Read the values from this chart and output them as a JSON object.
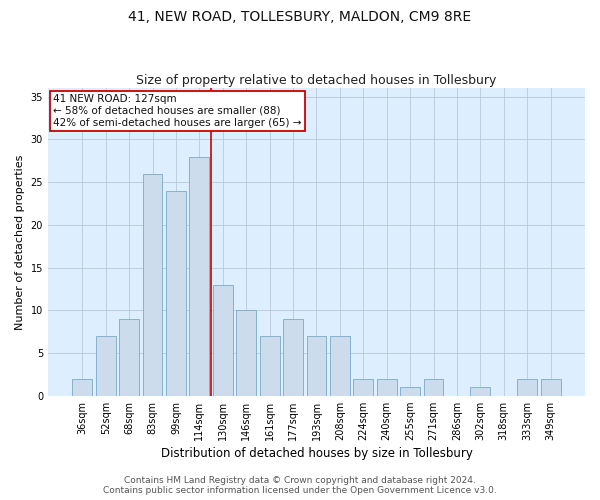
{
  "title": "41, NEW ROAD, TOLLESBURY, MALDON, CM9 8RE",
  "subtitle": "Size of property relative to detached houses in Tollesbury",
  "xlabel": "Distribution of detached houses by size in Tollesbury",
  "ylabel": "Number of detached properties",
  "categories": [
    "36sqm",
    "52sqm",
    "68sqm",
    "83sqm",
    "99sqm",
    "114sqm",
    "130sqm",
    "146sqm",
    "161sqm",
    "177sqm",
    "193sqm",
    "208sqm",
    "224sqm",
    "240sqm",
    "255sqm",
    "271sqm",
    "286sqm",
    "302sqm",
    "318sqm",
    "333sqm",
    "349sqm"
  ],
  "values": [
    2,
    7,
    9,
    26,
    24,
    28,
    13,
    10,
    7,
    9,
    7,
    7,
    2,
    2,
    1,
    2,
    0,
    1,
    0,
    2,
    2
  ],
  "bar_color": "#ccdcec",
  "bar_edge_color": "#7aaac8",
  "vline_color": "#cc0000",
  "annotation_lines": [
    "41 NEW ROAD: 127sqm",
    "← 58% of detached houses are smaller (88)",
    "42% of semi-detached houses are larger (65) →"
  ],
  "annotation_box_color": "#cc0000",
  "annotation_bg": "#ffffff",
  "ylim": [
    0,
    36
  ],
  "yticks": [
    0,
    5,
    10,
    15,
    20,
    25,
    30,
    35
  ],
  "grid_color": "#b8c8d8",
  "bg_color": "#ddeeff",
  "footer_line1": "Contains HM Land Registry data © Crown copyright and database right 2024.",
  "footer_line2": "Contains public sector information licensed under the Open Government Licence v3.0.",
  "title_fontsize": 10,
  "subtitle_fontsize": 9,
  "xlabel_fontsize": 8.5,
  "ylabel_fontsize": 8,
  "tick_fontsize": 7,
  "footer_fontsize": 6.5,
  "annotation_fontsize": 7.5
}
